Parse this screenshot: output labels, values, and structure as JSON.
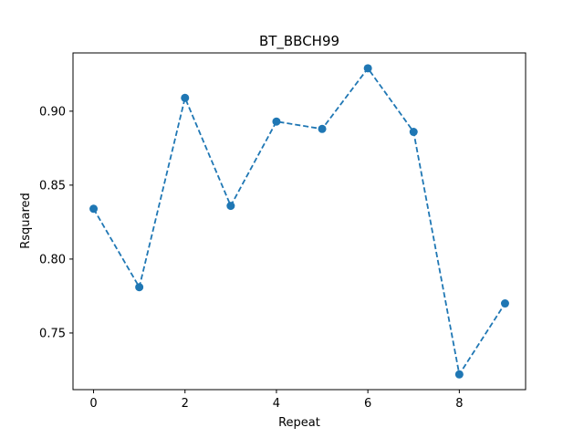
{
  "chart_data": {
    "type": "line",
    "title": "BT_BBCH99",
    "xlabel": "Repeat",
    "ylabel": "Rsquared",
    "x": [
      0,
      1,
      2,
      3,
      4,
      5,
      6,
      7,
      8,
      9
    ],
    "series": [
      {
        "values": [
          0.834,
          0.781,
          0.909,
          0.836,
          0.893,
          0.888,
          0.929,
          0.886,
          0.722,
          0.77
        ],
        "color": "#1f77b4",
        "line_style": "dashed",
        "marker": "circle"
      }
    ],
    "xlim": [
      -0.45,
      9.45
    ],
    "ylim": [
      0.7117,
      0.9394
    ],
    "xticks": [
      0,
      2,
      4,
      6,
      8
    ],
    "yticks": [
      0.75,
      0.8,
      0.85,
      0.9
    ],
    "xtick_labels": [
      "0",
      "2",
      "4",
      "6",
      "8"
    ],
    "ytick_labels": [
      "0.75",
      "0.80",
      "0.85",
      "0.90"
    ],
    "grid": false,
    "legend": "none"
  }
}
